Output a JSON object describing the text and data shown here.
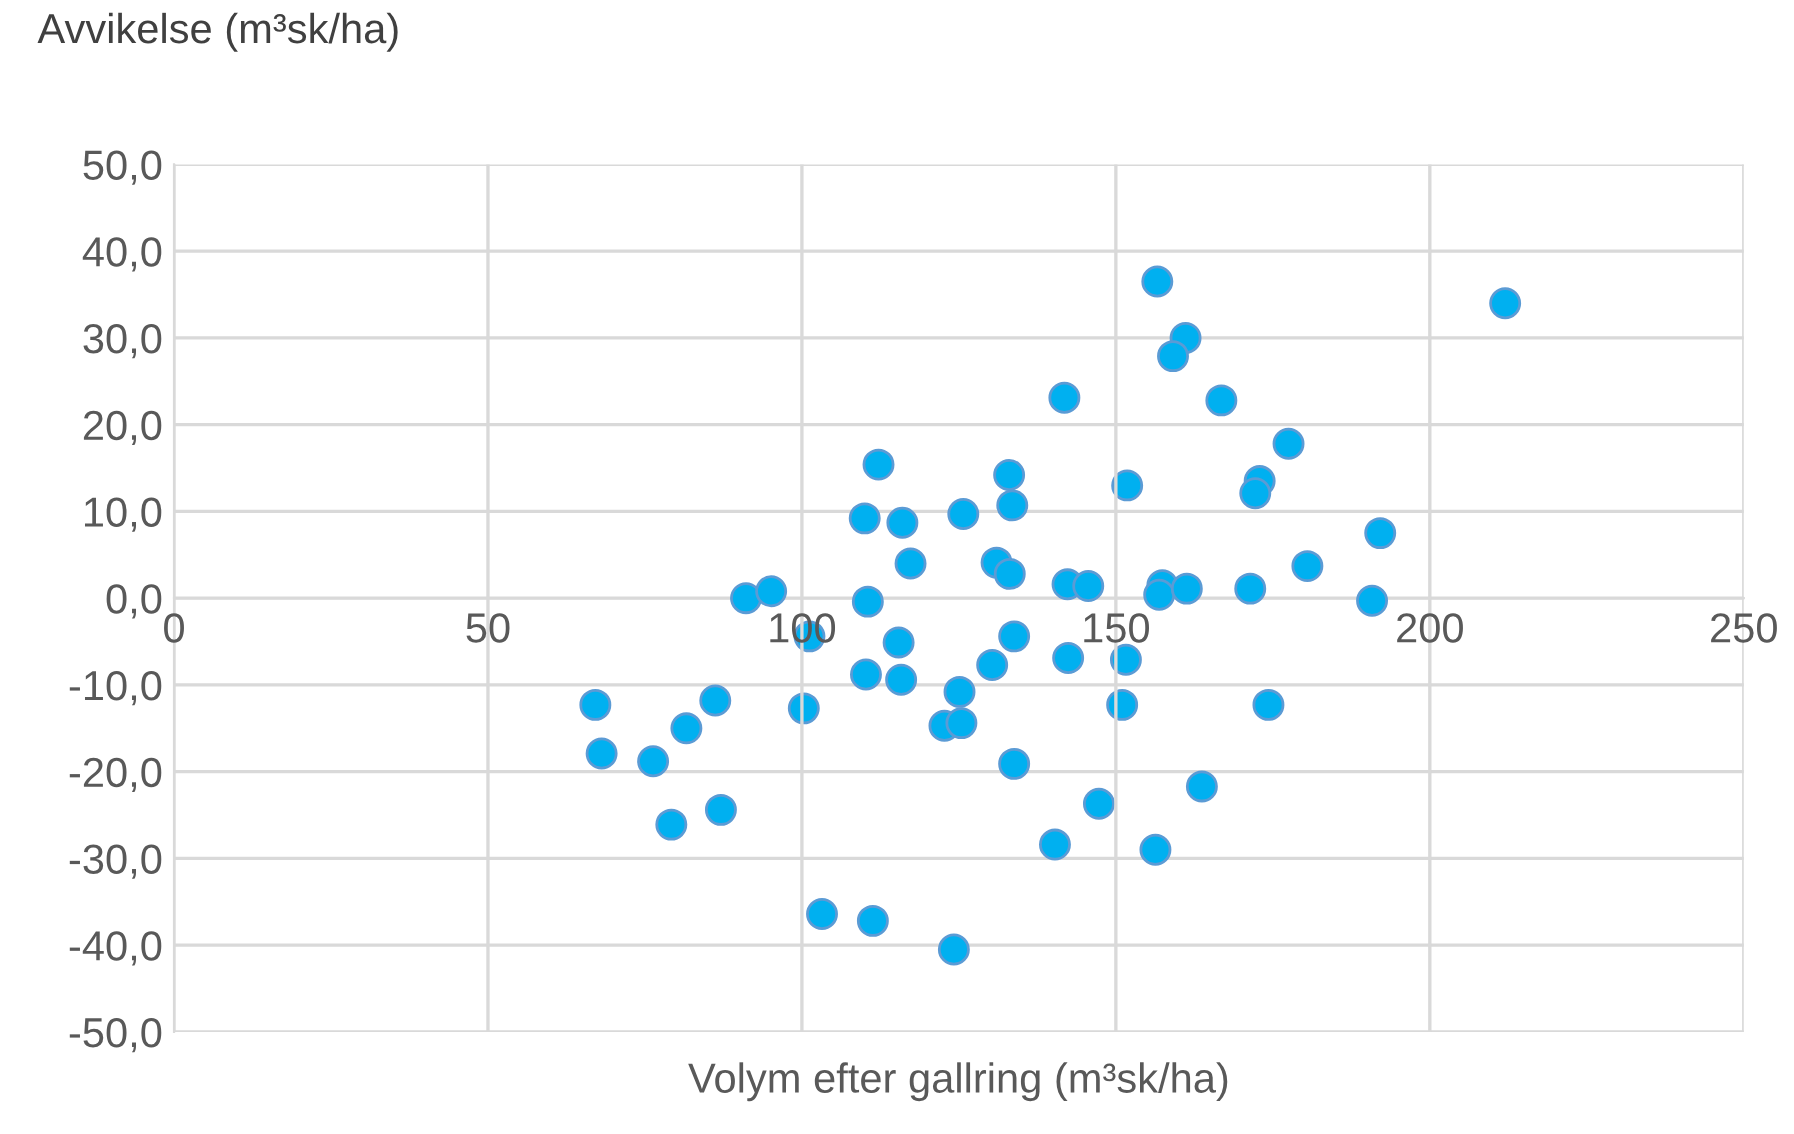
{
  "chart_data": {
    "type": "scatter",
    "xlabel": "Volym efter gallring (m³sk/ha)",
    "ylabel": "Avvikelse (m³sk/ha)",
    "xlim": [
      0,
      250
    ],
    "xticks": [
      0,
      50,
      100,
      150,
      200,
      250
    ],
    "ylim": [
      -50,
      50
    ],
    "yticks": [
      {
        "value": -50,
        "label": "-50,0"
      },
      {
        "value": -40,
        "label": "-40,0"
      },
      {
        "value": -30,
        "label": "-30,0"
      },
      {
        "value": -20,
        "label": "-20,0"
      },
      {
        "value": -10,
        "label": "-10,0"
      },
      {
        "value": 0,
        "label": "0,0"
      },
      {
        "value": 10,
        "label": "10,0"
      },
      {
        "value": 20,
        "label": "20,0"
      },
      {
        "value": 30,
        "label": "30,0"
      },
      {
        "value": 40,
        "label": "40,0"
      },
      {
        "value": 50,
        "label": "50,0"
      }
    ],
    "grid": true,
    "marker": "circle",
    "series": [
      {
        "color": "#00b0f0",
        "x": [
          156.6,
          161.1,
          159.1,
          141.8,
          166.8,
          177.5,
          172.9,
          172.2,
          151.8,
          133.0,
          133.5,
          125.7,
          116.0,
          112.2,
          192.1,
          180.5,
          117.3,
          131.0,
          133.1,
          142.3,
          145.6,
          157.4,
          156.9,
          161.3,
          171.4,
          190.8,
          115.4,
          133.8,
          142.4,
          151.6,
          130.3,
          115.8,
          125.1,
          122.7,
          125.4,
          151.0,
          174.3,
          133.8,
          163.7,
          147.3,
          140.3,
          156.3,
          110.0,
          91.1,
          95.1,
          110.5,
          101.2,
          110.2,
          67.1,
          86.2,
          100.3,
          81.6,
          68.1,
          76.3,
          79.2,
          87.1,
          103.2,
          111.3,
          124.2,
          212.0
        ],
        "values": [
          36.5,
          30.0,
          27.9,
          23.1,
          22.8,
          17.8,
          13.5,
          12.1,
          13.0,
          14.2,
          10.7,
          9.7,
          8.7,
          15.4,
          7.5,
          3.7,
          4.0,
          4.1,
          2.8,
          1.6,
          1.4,
          1.5,
          0.4,
          1.1,
          1.1,
          -0.3,
          -5.1,
          -4.4,
          -6.9,
          -7.1,
          -7.7,
          -9.4,
          -10.8,
          -14.7,
          -14.4,
          -12.3,
          -12.3,
          -19.1,
          -21.7,
          -23.7,
          -28.4,
          -29.0,
          9.2,
          0.0,
          0.8,
          -0.4,
          -4.4,
          -8.8,
          -12.3,
          -11.8,
          -12.7,
          -15.0,
          -17.9,
          -18.8,
          -26.1,
          -24.4,
          -36.4,
          -37.2,
          -40.5,
          34.0
        ]
      }
    ]
  }
}
